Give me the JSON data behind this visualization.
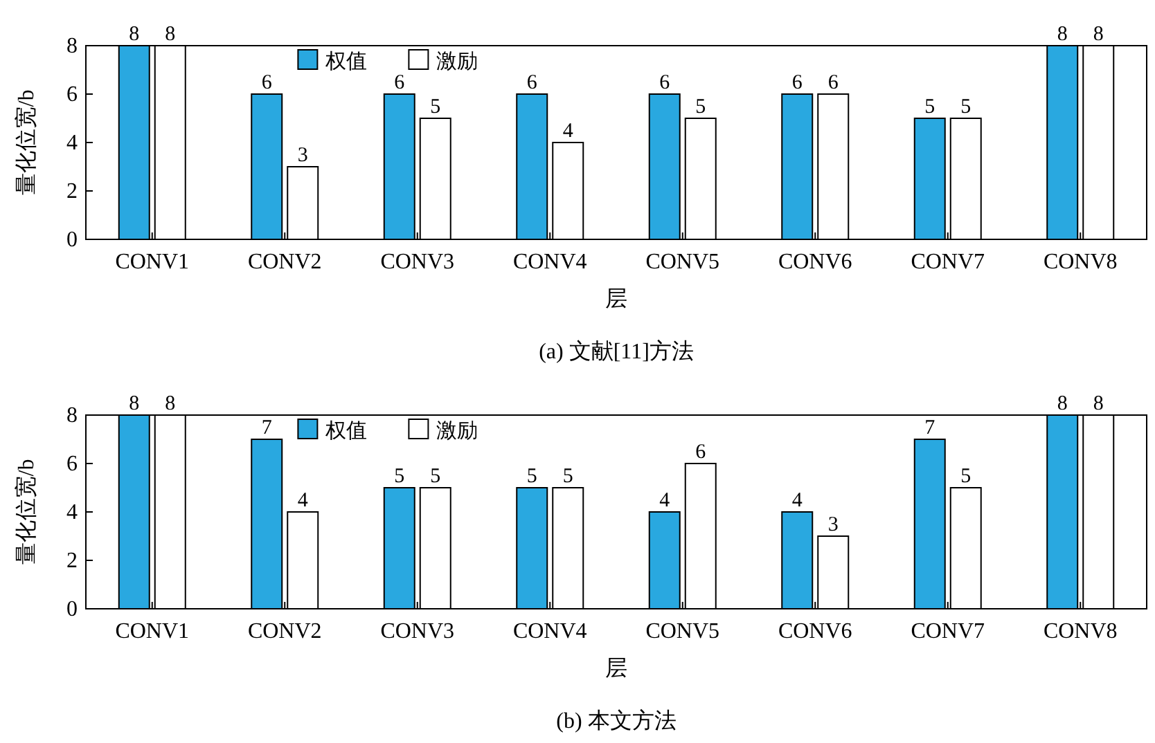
{
  "chart_data": [
    {
      "type": "bar",
      "title": "(a) 文献[11]方法",
      "xlabel": "层",
      "ylabel": "量化位宽/b",
      "categories": [
        "CONV1",
        "CONV2",
        "CONV3",
        "CONV4",
        "CONV5",
        "CONV6",
        "CONV7",
        "CONV8"
      ],
      "series": [
        {
          "name": "权值",
          "color": "#29a8e0",
          "values": [
            8,
            6,
            6,
            6,
            6,
            6,
            5,
            8
          ]
        },
        {
          "name": "激励",
          "color": "#ffffff",
          "values": [
            8,
            3,
            5,
            4,
            5,
            6,
            5,
            8
          ]
        }
      ],
      "ylim": [
        0,
        8
      ],
      "yticks": [
        0,
        2,
        4,
        6,
        8
      ],
      "data_labels": true,
      "legend": "top",
      "grid": false
    },
    {
      "type": "bar",
      "title": "(b) 本文方法",
      "xlabel": "层",
      "ylabel": "量化位宽/b",
      "categories": [
        "CONV1",
        "CONV2",
        "CONV3",
        "CONV4",
        "CONV5",
        "CONV6",
        "CONV7",
        "CONV8"
      ],
      "series": [
        {
          "name": "权值",
          "color": "#29a8e0",
          "values": [
            8,
            7,
            5,
            5,
            4,
            4,
            7,
            8
          ]
        },
        {
          "name": "激励",
          "color": "#ffffff",
          "values": [
            8,
            4,
            5,
            5,
            6,
            3,
            5,
            8
          ]
        }
      ],
      "ylim": [
        0,
        8
      ],
      "yticks": [
        0,
        2,
        4,
        6,
        8
      ],
      "data_labels": true,
      "legend": "top",
      "grid": false
    }
  ]
}
